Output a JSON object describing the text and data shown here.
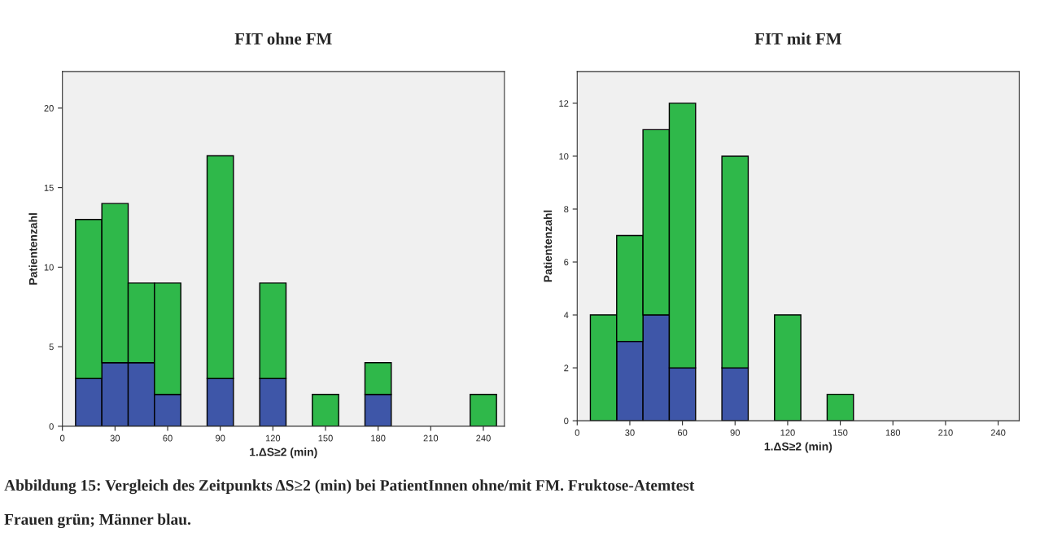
{
  "chart_data": [
    {
      "type": "bar",
      "title": "FIT ohne FM",
      "xlabel": "1.ΔS≥2 (min)",
      "ylabel": "Patientenzahl",
      "stacked": true,
      "grid": false,
      "x": [
        15,
        30,
        45,
        60,
        90,
        120,
        150,
        180,
        240
      ],
      "series": [
        {
          "color": "#3e56a8",
          "values": [
            3,
            4,
            4,
            2,
            3,
            3,
            0,
            2,
            0
          ]
        },
        {
          "color": "#2fb84a",
          "values": [
            10,
            10,
            5,
            7,
            14,
            6,
            2,
            2,
            2
          ]
        }
      ],
      "xlim": [
        0,
        252
      ],
      "xticks": [
        0,
        30,
        60,
        90,
        120,
        150,
        180,
        210,
        240
      ],
      "ylim": [
        0,
        22.3
      ],
      "yticks": [
        0,
        5,
        10,
        15,
        20
      ],
      "annotations": [
        "Abbildung 15: Vergleich des Zeitpunkts ΔS≥2 (min) bei PatientInnen ohne/mit FM. Fruktose-Atemtest",
        "Frauen grün; Männer blau."
      ]
    },
    {
      "type": "bar",
      "title": "FIT mit FM",
      "xlabel": "1.ΔS≥2 (min)",
      "ylabel": "Patientenzahl",
      "stacked": true,
      "grid": false,
      "x": [
        15,
        30,
        45,
        60,
        90,
        120,
        150
      ],
      "series": [
        {
          "color": "#3e56a8",
          "values": [
            0,
            3,
            4,
            2,
            2,
            0,
            0
          ]
        },
        {
          "color": "#2fb84a",
          "values": [
            4,
            4,
            7,
            10,
            8,
            4,
            1
          ]
        }
      ],
      "xlim": [
        0,
        252
      ],
      "xticks": [
        0,
        30,
        60,
        90,
        120,
        150,
        180,
        210,
        240
      ],
      "ylim": [
        0,
        13.2
      ],
      "yticks": [
        0,
        2,
        4,
        6,
        8,
        10,
        12
      ]
    }
  ]
}
